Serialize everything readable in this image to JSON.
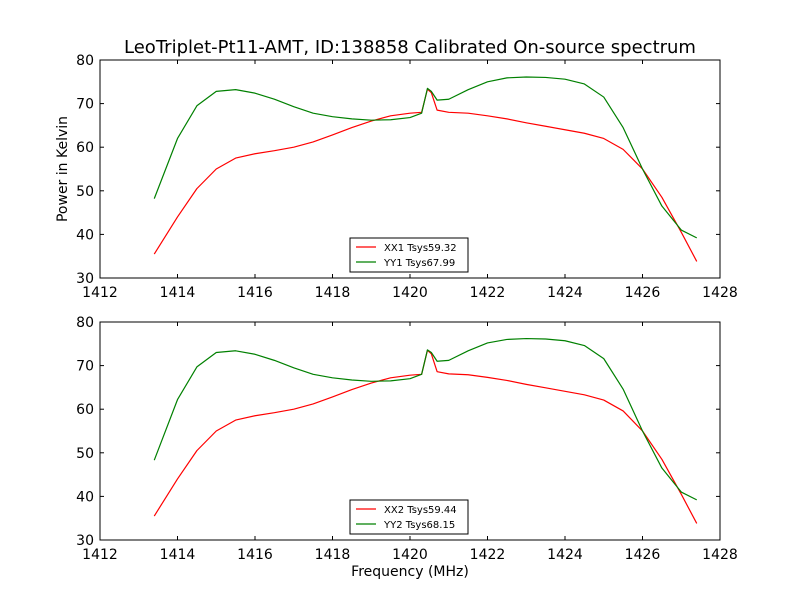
{
  "title": "LeoTriplet-Pt11-AMT, ID:138858 Calibrated On-source spectrum",
  "chart_data": [
    {
      "type": "line",
      "ylabel": "Power in Kelvin",
      "xlabel": "",
      "xlim": [
        1412,
        1428
      ],
      "ylim": [
        30,
        80
      ],
      "xticks": [
        "1412",
        "1414",
        "1416",
        "1418",
        "1420",
        "1422",
        "1424",
        "1426",
        "1428"
      ],
      "yticks": [
        "30",
        "40",
        "50",
        "60",
        "70",
        "80"
      ],
      "legend_position": "lower-center",
      "series": [
        {
          "name": "XX1 Tsys59.32",
          "color": "#ff0000",
          "x": [
            1413.4,
            1414.0,
            1414.5,
            1415.0,
            1415.5,
            1416.0,
            1416.5,
            1417.0,
            1417.5,
            1418.0,
            1418.5,
            1419.0,
            1419.5,
            1420.0,
            1420.3,
            1420.45,
            1420.55,
            1420.7,
            1421.0,
            1421.5,
            1422.0,
            1422.5,
            1423.0,
            1423.5,
            1424.0,
            1424.5,
            1425.0,
            1425.5,
            1426.0,
            1426.5,
            1427.0,
            1427.4
          ],
          "y": [
            35.5,
            44.0,
            50.5,
            55.0,
            57.5,
            58.5,
            59.2,
            60.0,
            61.2,
            62.8,
            64.5,
            66.0,
            67.2,
            67.8,
            68.0,
            73.3,
            72.5,
            68.5,
            68.0,
            67.8,
            67.2,
            66.5,
            65.6,
            64.8,
            64.0,
            63.2,
            62.0,
            59.5,
            55.0,
            48.5,
            40.5,
            33.8
          ]
        },
        {
          "name": "YY1 Tsys67.99",
          "color": "#008000",
          "x": [
            1413.4,
            1414.0,
            1414.5,
            1415.0,
            1415.5,
            1416.0,
            1416.5,
            1417.0,
            1417.5,
            1418.0,
            1418.5,
            1419.0,
            1419.5,
            1420.0,
            1420.3,
            1420.45,
            1420.55,
            1420.7,
            1421.0,
            1421.5,
            1422.0,
            1422.5,
            1423.0,
            1423.5,
            1424.0,
            1424.5,
            1425.0,
            1425.5,
            1426.0,
            1426.5,
            1427.0,
            1427.4
          ],
          "y": [
            48.2,
            62.0,
            69.5,
            72.8,
            73.2,
            72.4,
            71.0,
            69.3,
            67.8,
            67.0,
            66.5,
            66.2,
            66.3,
            66.8,
            67.8,
            73.5,
            72.8,
            70.8,
            71.0,
            73.2,
            75.0,
            75.9,
            76.1,
            76.0,
            75.6,
            74.5,
            71.5,
            64.5,
            55.0,
            46.5,
            41.0,
            39.2
          ]
        }
      ]
    },
    {
      "type": "line",
      "ylabel": "",
      "xlabel": "Frequency (MHz)",
      "xlim": [
        1412,
        1428
      ],
      "ylim": [
        30,
        80
      ],
      "xticks": [
        "1412",
        "1414",
        "1416",
        "1418",
        "1420",
        "1422",
        "1424",
        "1426",
        "1428"
      ],
      "yticks": [
        "30",
        "40",
        "50",
        "60",
        "70",
        "80"
      ],
      "legend_position": "lower-center",
      "series": [
        {
          "name": "XX2 Tsys59.44",
          "color": "#ff0000",
          "x": [
            1413.4,
            1414.0,
            1414.5,
            1415.0,
            1415.5,
            1416.0,
            1416.5,
            1417.0,
            1417.5,
            1418.0,
            1418.5,
            1419.0,
            1419.5,
            1420.0,
            1420.3,
            1420.45,
            1420.55,
            1420.7,
            1421.0,
            1421.5,
            1422.0,
            1422.5,
            1423.0,
            1423.5,
            1424.0,
            1424.5,
            1425.0,
            1425.5,
            1426.0,
            1426.5,
            1427.0,
            1427.4
          ],
          "y": [
            35.5,
            44.0,
            50.5,
            55.0,
            57.5,
            58.5,
            59.2,
            60.0,
            61.2,
            62.8,
            64.5,
            66.0,
            67.2,
            67.8,
            68.0,
            73.5,
            72.7,
            68.6,
            68.1,
            67.9,
            67.3,
            66.6,
            65.7,
            64.9,
            64.1,
            63.3,
            62.1,
            59.6,
            55.0,
            48.5,
            40.5,
            33.8
          ]
        },
        {
          "name": "YY2 Tsys68.15",
          "color": "#008000",
          "x": [
            1413.4,
            1414.0,
            1414.5,
            1415.0,
            1415.5,
            1416.0,
            1416.5,
            1417.0,
            1417.5,
            1418.0,
            1418.5,
            1419.0,
            1419.5,
            1420.0,
            1420.3,
            1420.45,
            1420.55,
            1420.7,
            1421.0,
            1421.5,
            1422.0,
            1422.5,
            1423.0,
            1423.5,
            1424.0,
            1424.5,
            1425.0,
            1425.5,
            1426.0,
            1426.5,
            1427.0,
            1427.4
          ],
          "y": [
            48.3,
            62.2,
            69.7,
            73.0,
            73.4,
            72.6,
            71.2,
            69.5,
            68.0,
            67.2,
            66.7,
            66.4,
            66.5,
            67.0,
            68.0,
            73.6,
            73.0,
            71.0,
            71.2,
            73.4,
            75.2,
            76.0,
            76.2,
            76.1,
            75.7,
            74.6,
            71.6,
            64.6,
            55.0,
            46.5,
            41.0,
            39.2
          ]
        }
      ]
    }
  ]
}
